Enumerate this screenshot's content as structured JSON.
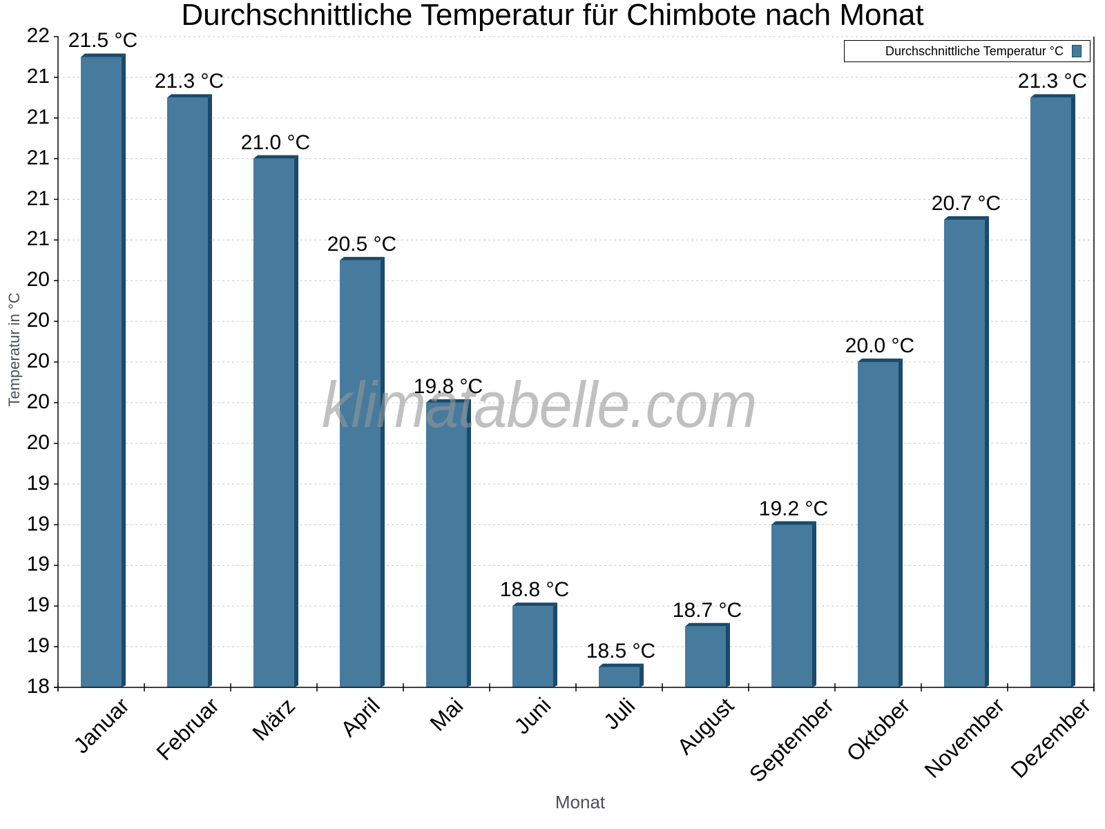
{
  "chart_data": {
    "type": "bar",
    "title": "Durchschnittliche Temperatur für Chimbote nach Monat",
    "xlabel": "Monat",
    "ylabel": "Temperatur in °C",
    "categories": [
      "Januar",
      "Februar",
      "März",
      "April",
      "Mai",
      "Juni",
      "Juli",
      "August",
      "September",
      "Oktober",
      "November",
      "Dezember"
    ],
    "series": [
      {
        "name": "Durchschnittliche Temperatur °C",
        "values": [
          21.5,
          21.3,
          21.0,
          20.5,
          19.8,
          18.8,
          18.5,
          18.7,
          19.2,
          20.0,
          20.7,
          21.3
        ],
        "color": "#467b9d",
        "side_color": "#1a4a6b"
      }
    ],
    "value_labels": [
      "21.5 °C",
      "21.3 °C",
      "21.0 °C",
      "20.5 °C",
      "19.8 °C",
      "18.8 °C",
      "18.5 °C",
      "18.7 °C",
      "19.2 °C",
      "20.0 °C",
      "20.7 °C",
      "21.3 °C"
    ],
    "ylim": [
      18.4,
      21.6
    ],
    "yticks": [
      21.6,
      21.4,
      21.2,
      21.0,
      20.8,
      20.6,
      20.4,
      20.2,
      20.0,
      19.8,
      19.6,
      19.4,
      19.2,
      19.0,
      18.8,
      18.6,
      18.4
    ],
    "ytick_labels": [
      "22",
      "21",
      "21",
      "21",
      "21",
      "21",
      "20",
      "20",
      "20",
      "20",
      "20",
      "19",
      "19",
      "19",
      "19",
      "19",
      "18"
    ],
    "grid": true,
    "legend_position": "top-right"
  },
  "watermark": "klimatabelle.com"
}
